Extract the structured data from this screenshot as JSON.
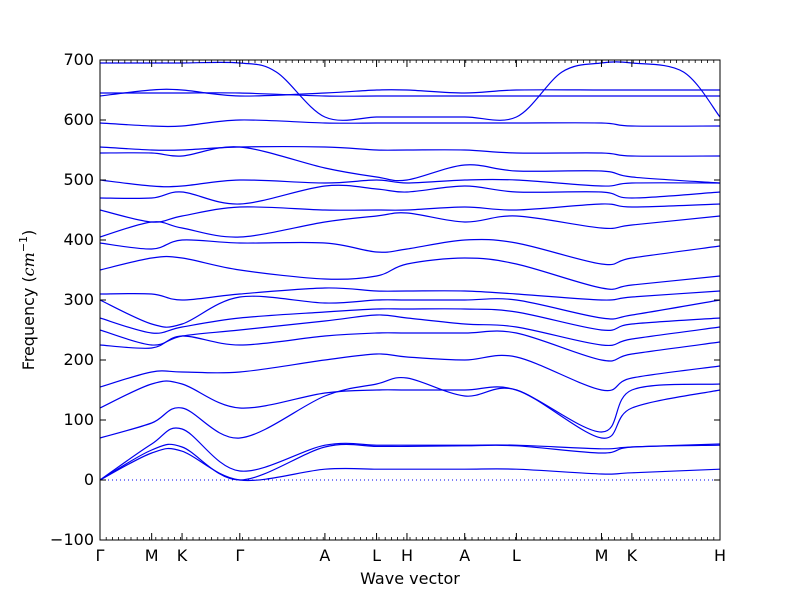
{
  "chart_data": {
    "type": "line",
    "xlabel": "Wave vector",
    "ylabel_prefix": "Frequency (",
    "ylabel_unit_main": "cm",
    "ylabel_unit_exp": "−1",
    "ylabel_suffix": ")",
    "ylim": [
      -100,
      700
    ],
    "yticks": [
      -100,
      0,
      100,
      200,
      300,
      400,
      500,
      600,
      700
    ],
    "ytick_labels": [
      "−100",
      "0",
      "100",
      "200",
      "300",
      "400",
      "500",
      "600",
      "700"
    ],
    "xlim": [
      0,
      10.2
    ],
    "xticks": [
      {
        "label": "Γ",
        "x": 0.0
      },
      {
        "label": "M",
        "x": 0.85
      },
      {
        "label": "K",
        "x": 1.35
      },
      {
        "label": "Γ",
        "x": 2.3
      },
      {
        "label": "A",
        "x": 3.7
      },
      {
        "label": "L",
        "x": 4.55
      },
      {
        "label": "H",
        "x": 5.05
      },
      {
        "label": "A",
        "x": 6.0
      },
      {
        "label": "L",
        "x": 6.85
      },
      {
        "label": "M",
        "x": 8.25
      },
      {
        "label": "K",
        "x": 8.75
      },
      {
        "label": "H",
        "x": 10.2
      }
    ],
    "zero_line": 0,
    "line_color": "#0000ee",
    "series": [
      {
        "values": [
          [
            0,
            0
          ],
          [
            0.85,
            45
          ],
          [
            1.35,
            48
          ],
          [
            2.3,
            0
          ],
          [
            3.7,
            18
          ],
          [
            4.55,
            18
          ],
          [
            5.05,
            18
          ],
          [
            6.0,
            18
          ],
          [
            6.85,
            18
          ],
          [
            8.25,
            10
          ],
          [
            8.75,
            12
          ],
          [
            10.2,
            18
          ]
        ]
      },
      {
        "values": [
          [
            0,
            0
          ],
          [
            0.85,
            50
          ],
          [
            1.35,
            55
          ],
          [
            2.3,
            0
          ],
          [
            3.7,
            55
          ],
          [
            4.55,
            56
          ],
          [
            5.05,
            56
          ],
          [
            6.0,
            57
          ],
          [
            6.85,
            57
          ],
          [
            8.25,
            45
          ],
          [
            8.75,
            55
          ],
          [
            10.2,
            58
          ]
        ]
      },
      {
        "values": [
          [
            0,
            0
          ],
          [
            0.85,
            60
          ],
          [
            1.35,
            85
          ],
          [
            2.3,
            15
          ],
          [
            3.7,
            58
          ],
          [
            4.55,
            58
          ],
          [
            5.05,
            58
          ],
          [
            6.0,
            58
          ],
          [
            6.85,
            58
          ],
          [
            8.25,
            52
          ],
          [
            8.75,
            55
          ],
          [
            10.2,
            60
          ]
        ]
      },
      {
        "values": [
          [
            0,
            70
          ],
          [
            0.85,
            95
          ],
          [
            1.35,
            120
          ],
          [
            2.3,
            70
          ],
          [
            3.7,
            140
          ],
          [
            4.55,
            160
          ],
          [
            5.05,
            170
          ],
          [
            6.0,
            140
          ],
          [
            6.85,
            150
          ],
          [
            8.25,
            70
          ],
          [
            8.75,
            120
          ],
          [
            10.2,
            150
          ]
        ]
      },
      {
        "values": [
          [
            0,
            120
          ],
          [
            0.85,
            160
          ],
          [
            1.35,
            160
          ],
          [
            2.3,
            120
          ],
          [
            3.7,
            145
          ],
          [
            4.55,
            150
          ],
          [
            5.05,
            150
          ],
          [
            6.0,
            150
          ],
          [
            6.85,
            150
          ],
          [
            8.25,
            80
          ],
          [
            8.75,
            150
          ],
          [
            10.2,
            160
          ]
        ]
      },
      {
        "values": [
          [
            0,
            155
          ],
          [
            0.85,
            180
          ],
          [
            1.35,
            180
          ],
          [
            2.3,
            180
          ],
          [
            3.7,
            200
          ],
          [
            4.55,
            210
          ],
          [
            5.05,
            205
          ],
          [
            6.0,
            200
          ],
          [
            6.85,
            205
          ],
          [
            8.25,
            150
          ],
          [
            8.75,
            170
          ],
          [
            10.2,
            190
          ]
        ]
      },
      {
        "values": [
          [
            0,
            225
          ],
          [
            0.85,
            220
          ],
          [
            1.35,
            240
          ],
          [
            2.3,
            225
          ],
          [
            3.7,
            240
          ],
          [
            4.55,
            245
          ],
          [
            5.05,
            245
          ],
          [
            6.0,
            245
          ],
          [
            6.85,
            245
          ],
          [
            8.25,
            200
          ],
          [
            8.75,
            210
          ],
          [
            10.2,
            230
          ]
        ]
      },
      {
        "values": [
          [
            0,
            250
          ],
          [
            0.85,
            225
          ],
          [
            1.35,
            240
          ],
          [
            2.3,
            250
          ],
          [
            3.7,
            265
          ],
          [
            4.55,
            275
          ],
          [
            5.05,
            270
          ],
          [
            6.0,
            260
          ],
          [
            6.85,
            255
          ],
          [
            8.25,
            225
          ],
          [
            8.75,
            235
          ],
          [
            10.2,
            255
          ]
        ]
      },
      {
        "values": [
          [
            0,
            270
          ],
          [
            0.85,
            245
          ],
          [
            1.35,
            255
          ],
          [
            2.3,
            270
          ],
          [
            3.7,
            280
          ],
          [
            4.55,
            285
          ],
          [
            5.05,
            285
          ],
          [
            6.0,
            285
          ],
          [
            6.85,
            280
          ],
          [
            8.25,
            250
          ],
          [
            8.75,
            260
          ],
          [
            10.2,
            270
          ]
        ]
      },
      {
        "values": [
          [
            0,
            300
          ],
          [
            0.85,
            260
          ],
          [
            1.35,
            260
          ],
          [
            2.3,
            305
          ],
          [
            3.7,
            295
          ],
          [
            4.55,
            300
          ],
          [
            5.05,
            300
          ],
          [
            6.0,
            300
          ],
          [
            6.85,
            300
          ],
          [
            8.25,
            270
          ],
          [
            8.75,
            275
          ],
          [
            10.2,
            300
          ]
        ]
      },
      {
        "values": [
          [
            0,
            310
          ],
          [
            0.85,
            310
          ],
          [
            1.35,
            300
          ],
          [
            2.3,
            310
          ],
          [
            3.7,
            320
          ],
          [
            4.55,
            315
          ],
          [
            5.05,
            315
          ],
          [
            6.0,
            315
          ],
          [
            6.85,
            310
          ],
          [
            8.25,
            300
          ],
          [
            8.75,
            305
          ],
          [
            10.2,
            315
          ]
        ]
      },
      {
        "values": [
          [
            0,
            350
          ],
          [
            0.85,
            370
          ],
          [
            1.35,
            370
          ],
          [
            2.3,
            350
          ],
          [
            3.7,
            335
          ],
          [
            4.55,
            340
          ],
          [
            5.05,
            360
          ],
          [
            6.0,
            370
          ],
          [
            6.85,
            360
          ],
          [
            8.25,
            320
          ],
          [
            8.75,
            325
          ],
          [
            10.2,
            340
          ]
        ]
      },
      {
        "values": [
          [
            0,
            395
          ],
          [
            0.85,
            385
          ],
          [
            1.35,
            400
          ],
          [
            2.3,
            395
          ],
          [
            3.7,
            395
          ],
          [
            4.55,
            380
          ],
          [
            5.05,
            385
          ],
          [
            6.0,
            400
          ],
          [
            6.85,
            395
          ],
          [
            8.25,
            360
          ],
          [
            8.75,
            370
          ],
          [
            10.2,
            390
          ]
        ]
      },
      {
        "values": [
          [
            0,
            405
          ],
          [
            0.85,
            430
          ],
          [
            1.35,
            420
          ],
          [
            2.3,
            405
          ],
          [
            3.7,
            430
          ],
          [
            4.55,
            440
          ],
          [
            5.05,
            445
          ],
          [
            6.0,
            430
          ],
          [
            6.85,
            440
          ],
          [
            8.25,
            420
          ],
          [
            8.75,
            425
          ],
          [
            10.2,
            440
          ]
        ]
      },
      {
        "values": [
          [
            0,
            450
          ],
          [
            0.85,
            430
          ],
          [
            1.35,
            440
          ],
          [
            2.3,
            455
          ],
          [
            3.7,
            450
          ],
          [
            4.55,
            450
          ],
          [
            5.05,
            450
          ],
          [
            6.0,
            455
          ],
          [
            6.85,
            450
          ],
          [
            8.25,
            460
          ],
          [
            8.75,
            455
          ],
          [
            10.2,
            460
          ]
        ]
      },
      {
        "values": [
          [
            0,
            470
          ],
          [
            0.85,
            470
          ],
          [
            1.35,
            480
          ],
          [
            2.3,
            460
          ],
          [
            3.7,
            490
          ],
          [
            4.55,
            485
          ],
          [
            5.05,
            480
          ],
          [
            6.0,
            490
          ],
          [
            6.85,
            480
          ],
          [
            8.25,
            480
          ],
          [
            8.75,
            470
          ],
          [
            10.2,
            480
          ]
        ]
      },
      {
        "values": [
          [
            0,
            500
          ],
          [
            0.85,
            490
          ],
          [
            1.35,
            490
          ],
          [
            2.3,
            500
          ],
          [
            3.7,
            495
          ],
          [
            4.55,
            500
          ],
          [
            5.05,
            495
          ],
          [
            6.0,
            500
          ],
          [
            6.85,
            500
          ],
          [
            8.25,
            490
          ],
          [
            8.75,
            495
          ],
          [
            10.2,
            495
          ]
        ]
      },
      {
        "values": [
          [
            0,
            545
          ],
          [
            0.85,
            545
          ],
          [
            1.35,
            540
          ],
          [
            2.3,
            555
          ],
          [
            3.7,
            520
          ],
          [
            4.55,
            505
          ],
          [
            5.05,
            500
          ],
          [
            6.0,
            525
          ],
          [
            6.85,
            515
          ],
          [
            8.25,
            515
          ],
          [
            8.75,
            505
          ],
          [
            10.2,
            495
          ]
        ]
      },
      {
        "values": [
          [
            0,
            555
          ],
          [
            0.85,
            550
          ],
          [
            1.35,
            550
          ],
          [
            2.3,
            555
          ],
          [
            3.7,
            555
          ],
          [
            4.55,
            550
          ],
          [
            5.05,
            550
          ],
          [
            6.0,
            550
          ],
          [
            6.85,
            545
          ],
          [
            8.25,
            545
          ],
          [
            8.75,
            540
          ],
          [
            10.2,
            540
          ]
        ]
      },
      {
        "values": [
          [
            0,
            595
          ],
          [
            0.85,
            590
          ],
          [
            1.35,
            590
          ],
          [
            2.3,
            600
          ],
          [
            3.7,
            595
          ],
          [
            4.55,
            595
          ],
          [
            5.05,
            595
          ],
          [
            6.0,
            595
          ],
          [
            6.85,
            595
          ],
          [
            8.25,
            595
          ],
          [
            8.75,
            590
          ],
          [
            10.2,
            590
          ]
        ]
      },
      {
        "values": [
          [
            0,
            640
          ],
          [
            0.85,
            650
          ],
          [
            1.35,
            650
          ],
          [
            2.3,
            640
          ],
          [
            3.7,
            645
          ],
          [
            4.55,
            650
          ],
          [
            5.05,
            650
          ],
          [
            6.0,
            645
          ],
          [
            6.85,
            650
          ],
          [
            8.25,
            650
          ],
          [
            8.75,
            650
          ],
          [
            10.2,
            650
          ]
        ]
      },
      {
        "values": [
          [
            0,
            645
          ],
          [
            0.85,
            645
          ],
          [
            1.35,
            645
          ],
          [
            2.3,
            645
          ],
          [
            3.7,
            640
          ],
          [
            4.55,
            640
          ],
          [
            5.05,
            640
          ],
          [
            6.0,
            640
          ],
          [
            6.85,
            640
          ],
          [
            8.25,
            640
          ],
          [
            8.75,
            640
          ],
          [
            10.2,
            640
          ]
        ]
      },
      {
        "values": [
          [
            0,
            695
          ],
          [
            0.85,
            695
          ],
          [
            1.35,
            695
          ],
          [
            2.3,
            695
          ],
          [
            2.9,
            680
          ],
          [
            3.7,
            605
          ],
          [
            4.55,
            605
          ],
          [
            5.05,
            605
          ],
          [
            6.0,
            605
          ],
          [
            6.85,
            605
          ],
          [
            7.6,
            680
          ],
          [
            8.25,
            695
          ],
          [
            8.75,
            695
          ],
          [
            9.6,
            680
          ],
          [
            10.2,
            605
          ]
        ]
      }
    ]
  }
}
